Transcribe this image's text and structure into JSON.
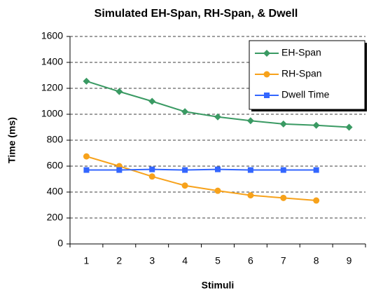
{
  "chart_data": {
    "type": "line",
    "title": "Simulated EH-Span, RH-Span, & Dwell",
    "x_label": "Stimuli",
    "y_label": "Time (ms)",
    "categories": [
      "1",
      "2",
      "3",
      "4",
      "5",
      "6",
      "7",
      "8",
      "9"
    ],
    "series": [
      {
        "name": "EH-Span",
        "color": "#3a9a63",
        "marker": "diamond",
        "values": [
          1255,
          1175,
          1100,
          1020,
          980,
          950,
          925,
          915,
          900
        ]
      },
      {
        "name": "RH-Span",
        "color": "#f7a21b",
        "marker": "circle",
        "values": [
          675,
          600,
          520,
          450,
          410,
          375,
          355,
          335,
          null
        ]
      },
      {
        "name": "Dwell Time",
        "color": "#3366ff",
        "marker": "square",
        "values": [
          570,
          570,
          575,
          570,
          575,
          570,
          570,
          570,
          null
        ]
      }
    ],
    "ylim": [
      0,
      1600
    ],
    "yticks": [
      0,
      200,
      400,
      600,
      800,
      1000,
      1200,
      1400,
      1600
    ],
    "grid": true,
    "legend": "upper right"
  }
}
